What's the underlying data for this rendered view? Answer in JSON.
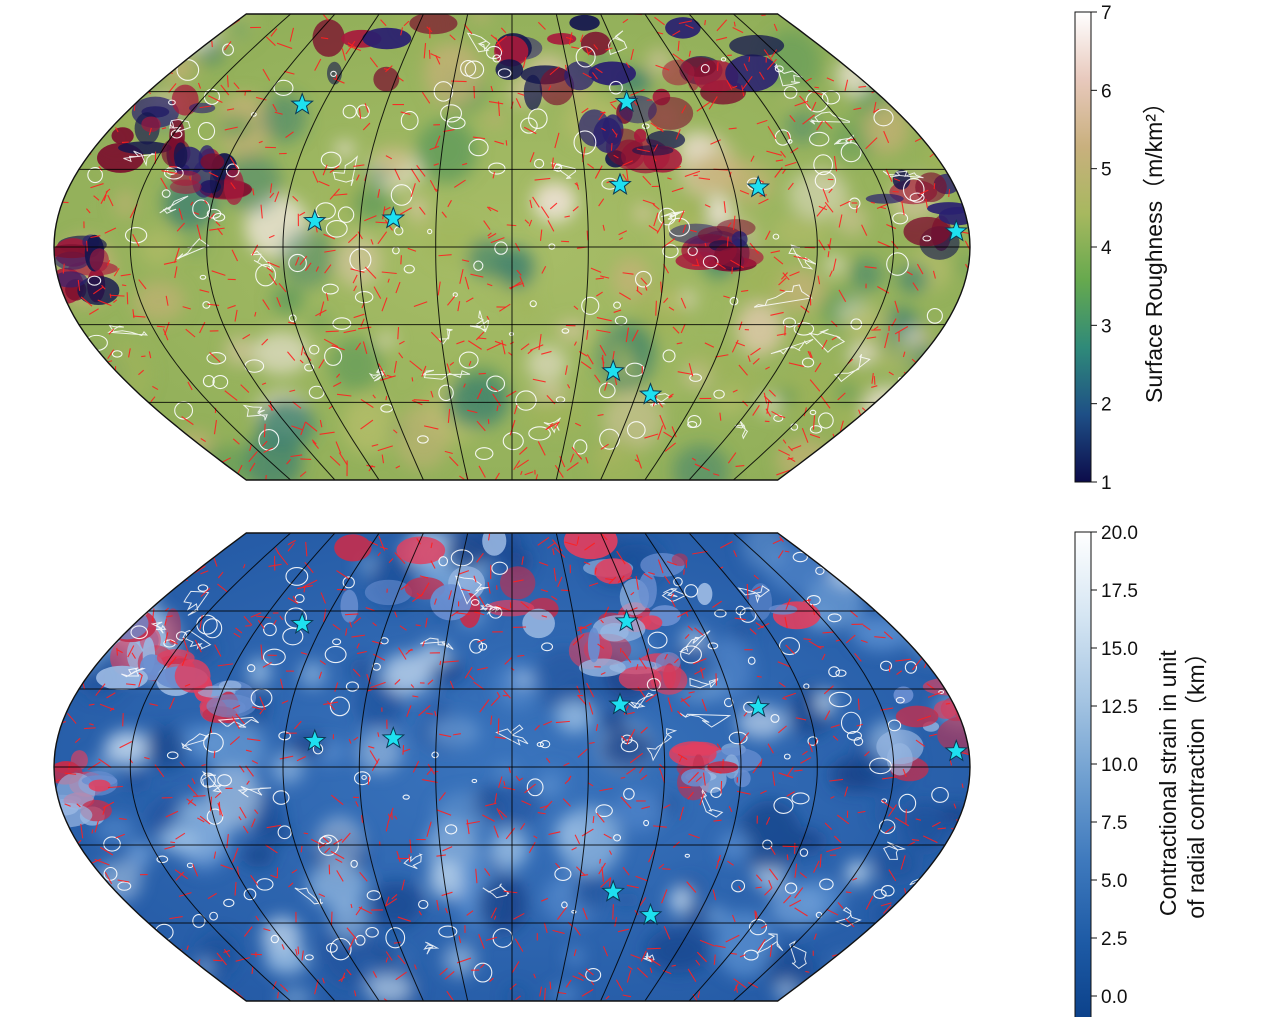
{
  "colorbars": [
    {
      "title_lines": [
        "Surface Roughness（m/km²）"
      ],
      "ticks": [
        "1",
        "2",
        "3",
        "4",
        "5",
        "6",
        "7"
      ],
      "range": [
        1,
        7
      ],
      "gradient": [
        "#0c0c4a",
        "#1e4f86",
        "#2f8a79",
        "#66a94e",
        "#a7b85f",
        "#c9b07e",
        "#e8c9bd",
        "#ffffff"
      ]
    },
    {
      "title_lines": [
        "Contractional strain in unit",
        "of radial contraction（km）"
      ],
      "ticks": [
        "0.0",
        "2.5",
        "5.0",
        "7.5",
        "10.0",
        "12.5",
        "15.0",
        "17.5",
        "20.0"
      ],
      "range": [
        0,
        20
      ],
      "gradient": [
        "#0a3f88",
        "#1d5aa5",
        "#3e79bd",
        "#6f9fd0",
        "#a7c6e3",
        "#d6e6f3",
        "#ffffff"
      ]
    }
  ],
  "maps": [
    {
      "name": "surface-roughness-map",
      "base_color": "#8db35c",
      "overlay": "red lineaments, white region outlines, cyan star markers"
    },
    {
      "name": "contractional-strain-map",
      "base_color": "#2d62b0",
      "overlay": "red lineaments, white region outlines, cyan star markers"
    }
  ],
  "stars": [
    {
      "lon": -100,
      "lat": 55
    },
    {
      "lon": -78,
      "lat": 10
    },
    {
      "lon": -47,
      "lat": 11
    },
    {
      "lon": 44,
      "lat": 24
    },
    {
      "lon": 55,
      "lat": 56
    },
    {
      "lon": 100,
      "lat": 23
    },
    {
      "lon": 175,
      "lat": 6
    },
    {
      "lon": 46,
      "lat": -48
    },
    {
      "lon": 67,
      "lat": -57
    }
  ],
  "colors": {
    "star": "#1ee0f0",
    "lineament": "#ff2020",
    "outline": "#ffffff",
    "graticule": "#000000"
  }
}
